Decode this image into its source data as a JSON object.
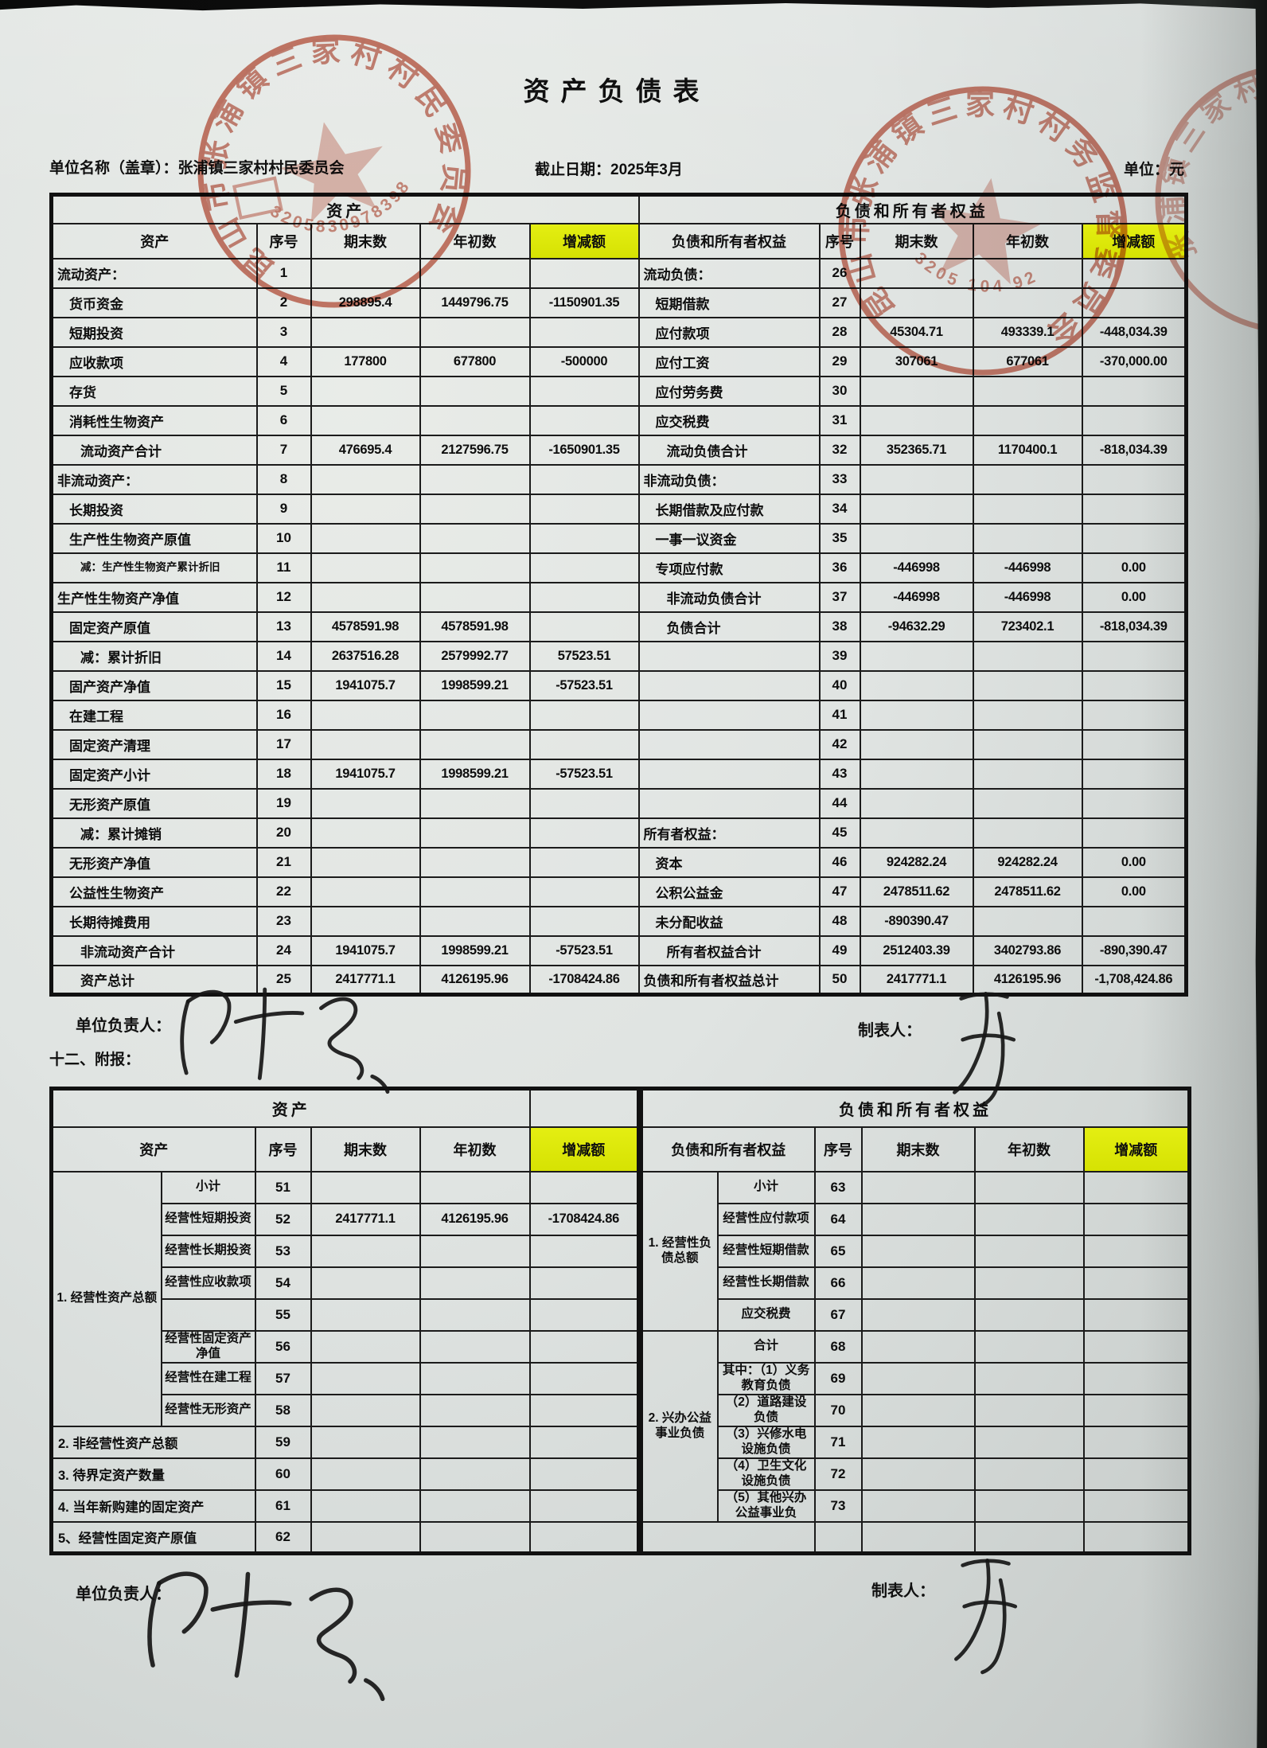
{
  "page": {
    "title": "资产负债表",
    "unit_name": "单位名称（盖章）：张浦镇三家村村民委员会",
    "report_date": "截止日期：2025年3月",
    "currency_unit": "单位：元",
    "appendix_label": "十二、附报：",
    "accent_yellow": "#dde80e",
    "stamp_red": "#bf4a33"
  },
  "signatures": {
    "responsible_label": "单位负责人：",
    "preparer_label": "制表人："
  },
  "stamps": {
    "left_ring_text": "昆山市张浦镇三家村村民委员会",
    "left_number": "3205830978398",
    "right_ring_text": "昆山市张浦镇三家村村务监督委员会",
    "right_number": "3205 104 92",
    "edge_ring_text": "张浦镇三家村村务监督委员会"
  },
  "table1": {
    "left_header": "资产",
    "right_header": "负债和所有者权益",
    "sub": [
      "资产",
      "序号",
      "期末数",
      "年初数",
      "增减额"
    ],
    "sub_right": [
      "负债和所有者权益",
      "序号",
      "期末数",
      "年初数",
      "增减额"
    ],
    "rows": [
      {
        "l": "流动资产：",
        "li": 0,
        "ln": "1",
        "le": "",
        "lb": "",
        "lc": "",
        "r": "流动负债：",
        "ri": 0,
        "rn": "26",
        "re": "",
        "rb": "",
        "rc": ""
      },
      {
        "l": "货币资金",
        "li": 1,
        "ln": "2",
        "le": "298895.4",
        "lb": "1449796.75",
        "lc": "-1150901.35",
        "r": "短期借款",
        "ri": 1,
        "rn": "27",
        "re": "",
        "rb": "",
        "rc": ""
      },
      {
        "l": "短期投资",
        "li": 1,
        "ln": "3",
        "le": "",
        "lb": "",
        "lc": "",
        "r": "应付款项",
        "ri": 1,
        "rn": "28",
        "re": "45304.71",
        "rb": "493339.1",
        "rc": "-448,034.39"
      },
      {
        "l": "应收款项",
        "li": 1,
        "ln": "4",
        "le": "177800",
        "lb": "677800",
        "lc": "-500000",
        "r": "应付工资",
        "ri": 1,
        "rn": "29",
        "re": "307061",
        "rb": "677061",
        "rc": "-370,000.00"
      },
      {
        "l": "存货",
        "li": 1,
        "ln": "5",
        "le": "",
        "lb": "",
        "lc": "",
        "r": "应付劳务费",
        "ri": 1,
        "rn": "30",
        "re": "",
        "rb": "",
        "rc": ""
      },
      {
        "l": "消耗性生物资产",
        "li": 1,
        "ln": "6",
        "le": "",
        "lb": "",
        "lc": "",
        "r": "应交税费",
        "ri": 1,
        "rn": "31",
        "re": "",
        "rb": "",
        "rc": ""
      },
      {
        "l": "流动资产合计",
        "li": 2,
        "ln": "7",
        "le": "476695.4",
        "lb": "2127596.75",
        "lc": "-1650901.35",
        "r": "流动负债合计",
        "ri": 2,
        "rn": "32",
        "re": "352365.71",
        "rb": "1170400.1",
        "rc": "-818,034.39"
      },
      {
        "l": "非流动资产：",
        "li": 0,
        "ln": "8",
        "le": "",
        "lb": "",
        "lc": "",
        "r": "非流动负债：",
        "ri": 0,
        "rn": "33",
        "re": "",
        "rb": "",
        "rc": ""
      },
      {
        "l": "长期投资",
        "li": 1,
        "ln": "9",
        "le": "",
        "lb": "",
        "lc": "",
        "r": "长期借款及应付款",
        "ri": 1,
        "rn": "34",
        "re": "",
        "rb": "",
        "rc": ""
      },
      {
        "l": "生产性生物资产原值",
        "li": 1,
        "ln": "10",
        "le": "",
        "lb": "",
        "lc": "",
        "r": "一事一议资金",
        "ri": 1,
        "rn": "35",
        "re": "",
        "rb": "",
        "rc": ""
      },
      {
        "l": "减：生产性生物资产累计折旧",
        "li": 2,
        "ls": true,
        "ln": "11",
        "le": "",
        "lb": "",
        "lc": "",
        "r": "专项应付款",
        "ri": 1,
        "rn": "36",
        "re": "-446998",
        "rb": "-446998",
        "rc": "0.00"
      },
      {
        "l": "生产性生物资产净值",
        "li": 0,
        "ln": "12",
        "le": "",
        "lb": "",
        "lc": "",
        "r": "非流动负债合计",
        "ri": 2,
        "rn": "37",
        "re": "-446998",
        "rb": "-446998",
        "rc": "0.00"
      },
      {
        "l": "固定资产原值",
        "li": 1,
        "ln": "13",
        "le": "4578591.98",
        "lb": "4578591.98",
        "lc": "",
        "r": "负债合计",
        "ri": 2,
        "rn": "38",
        "re": "-94632.29",
        "rb": "723402.1",
        "rc": "-818,034.39"
      },
      {
        "l": "减：累计折旧",
        "li": 2,
        "ln": "14",
        "le": "2637516.28",
        "lb": "2579992.77",
        "lc": "57523.51",
        "r": "",
        "ri": 0,
        "rn": "39",
        "re": "",
        "rb": "",
        "rc": ""
      },
      {
        "l": "固产资产净值",
        "li": 1,
        "ln": "15",
        "le": "1941075.7",
        "lb": "1998599.21",
        "lc": "-57523.51",
        "r": "",
        "ri": 0,
        "rn": "40",
        "re": "",
        "rb": "",
        "rc": ""
      },
      {
        "l": "在建工程",
        "li": 1,
        "ln": "16",
        "le": "",
        "lb": "",
        "lc": "",
        "r": "",
        "ri": 0,
        "rn": "41",
        "re": "",
        "rb": "",
        "rc": ""
      },
      {
        "l": "固定资产清理",
        "li": 1,
        "ln": "17",
        "le": "",
        "lb": "",
        "lc": "",
        "r": "",
        "ri": 0,
        "rn": "42",
        "re": "",
        "rb": "",
        "rc": ""
      },
      {
        "l": "固定资产小计",
        "li": 1,
        "ln": "18",
        "le": "1941075.7",
        "lb": "1998599.21",
        "lc": "-57523.51",
        "r": "",
        "ri": 0,
        "rn": "43",
        "re": "",
        "rb": "",
        "rc": ""
      },
      {
        "l": "无形资产原值",
        "li": 1,
        "ln": "19",
        "le": "",
        "lb": "",
        "lc": "",
        "r": "",
        "ri": 0,
        "rn": "44",
        "re": "",
        "rb": "",
        "rc": ""
      },
      {
        "l": "减：累计摊销",
        "li": 2,
        "ln": "20",
        "le": "",
        "lb": "",
        "lc": "",
        "r": "所有者权益：",
        "ri": 0,
        "rn": "45",
        "re": "",
        "rb": "",
        "rc": ""
      },
      {
        "l": "无形资产净值",
        "li": 1,
        "ln": "21",
        "le": "",
        "lb": "",
        "lc": "",
        "r": "资本",
        "ri": 1,
        "rn": "46",
        "re": "924282.24",
        "rb": "924282.24",
        "rc": "0.00"
      },
      {
        "l": "公益性生物资产",
        "li": 1,
        "ln": "22",
        "le": "",
        "lb": "",
        "lc": "",
        "r": "公积公益金",
        "ri": 1,
        "rn": "47",
        "re": "2478511.62",
        "rb": "2478511.62",
        "rc": "0.00"
      },
      {
        "l": "长期待摊费用",
        "li": 1,
        "ln": "23",
        "le": "",
        "lb": "",
        "lc": "",
        "r": "未分配收益",
        "ri": 1,
        "rn": "48",
        "re": "-890390.47",
        "rb": "",
        "rc": ""
      },
      {
        "l": "非流动资产合计",
        "li": 2,
        "ln": "24",
        "le": "1941075.7",
        "lb": "1998599.21",
        "lc": "-57523.51",
        "r": "所有者权益合计",
        "ri": 2,
        "rn": "49",
        "re": "2512403.39",
        "rb": "3402793.86",
        "rc": "-890,390.47"
      },
      {
        "l": "资产总计",
        "li": 2,
        "ln": "25",
        "le": "2417771.1",
        "lb": "4126195.96",
        "lc": "-1708424.86",
        "r": "负债和所有者权益总计",
        "ri": 0,
        "rn": "50",
        "re": "2417771.1",
        "rb": "4126195.96",
        "rc": "-1,708,424.86"
      }
    ]
  },
  "table2": {
    "left_header": "资产",
    "right_header": "负债和所有者权益",
    "sub_left": [
      "资产",
      "序号",
      "期末数",
      "年初数",
      "增减额"
    ],
    "sub_right": [
      "负债和所有者权益",
      "序号",
      "期末数",
      "年初数",
      "增减额"
    ],
    "left_rows": [
      {
        "group": "1. 经营性资产总额",
        "gspan": 8,
        "label": "小计",
        "no": "51",
        "end": "",
        "begin": "",
        "chg": ""
      },
      {
        "label": "经营性短期投资",
        "no": "52",
        "end": "2417771.1",
        "begin": "4126195.96",
        "chg": "-1708424.86"
      },
      {
        "label": "经营性长期投资",
        "no": "53",
        "end": "",
        "begin": "",
        "chg": ""
      },
      {
        "label": "经营性应收款项",
        "no": "54",
        "end": "",
        "begin": "",
        "chg": ""
      },
      {
        "label": "",
        "no": "55",
        "end": "",
        "begin": "",
        "chg": ""
      },
      {
        "label": "经营性固定资产净值",
        "no": "56",
        "end": "",
        "begin": "",
        "chg": ""
      },
      {
        "label": "经营性在建工程",
        "no": "57",
        "end": "",
        "begin": "",
        "chg": ""
      },
      {
        "label": "经营性无形资产",
        "no": "58",
        "end": "",
        "begin": "",
        "chg": ""
      },
      {
        "label": "2. 非经营性资产总额",
        "no": "59",
        "full": true,
        "end": "",
        "begin": "",
        "chg": ""
      },
      {
        "label": "3. 待界定资产数量",
        "no": "60",
        "full": true,
        "end": "",
        "begin": "",
        "chg": ""
      },
      {
        "label": "4. 当年新购建的固定资产",
        "no": "61",
        "full": true,
        "end": "",
        "begin": "",
        "chg": ""
      },
      {
        "label": "5、经营性固定资产原值",
        "no": "62",
        "full": true,
        "end": "",
        "begin": "",
        "chg": ""
      }
    ],
    "right_rows": [
      {
        "group": "1. 经营性负债总额",
        "gspan": 5,
        "label": "小计",
        "no": "63",
        "end": "",
        "begin": "",
        "chg": ""
      },
      {
        "label": "经营性应付款项",
        "no": "64",
        "end": "",
        "begin": "",
        "chg": ""
      },
      {
        "label": "经营性短期借款",
        "no": "65",
        "end": "",
        "begin": "",
        "chg": ""
      },
      {
        "label": "经营性长期借款",
        "no": "66",
        "end": "",
        "begin": "",
        "chg": ""
      },
      {
        "label": "应交税费",
        "no": "67",
        "end": "",
        "begin": "",
        "chg": ""
      },
      {
        "group": "2. 兴办公益事业负债",
        "gspan": 6,
        "label": "合计",
        "no": "68",
        "end": "",
        "begin": "",
        "chg": ""
      },
      {
        "label": "其中：（1）义务教育负债",
        "no": "69",
        "end": "",
        "begin": "",
        "chg": ""
      },
      {
        "label": "（2）道路建设负债",
        "no": "70",
        "end": "",
        "begin": "",
        "chg": ""
      },
      {
        "label": "（3）兴修水电设施负债",
        "no": "71",
        "end": "",
        "begin": "",
        "chg": ""
      },
      {
        "label": "（4）卫生文化设施负债",
        "no": "72",
        "end": "",
        "begin": "",
        "chg": ""
      },
      {
        "label": "（5）其他兴办公益事业负",
        "no": "73",
        "end": "",
        "begin": "",
        "chg": ""
      },
      {
        "label": "",
        "no": "",
        "full": true,
        "end": "",
        "begin": "",
        "chg": ""
      }
    ]
  }
}
